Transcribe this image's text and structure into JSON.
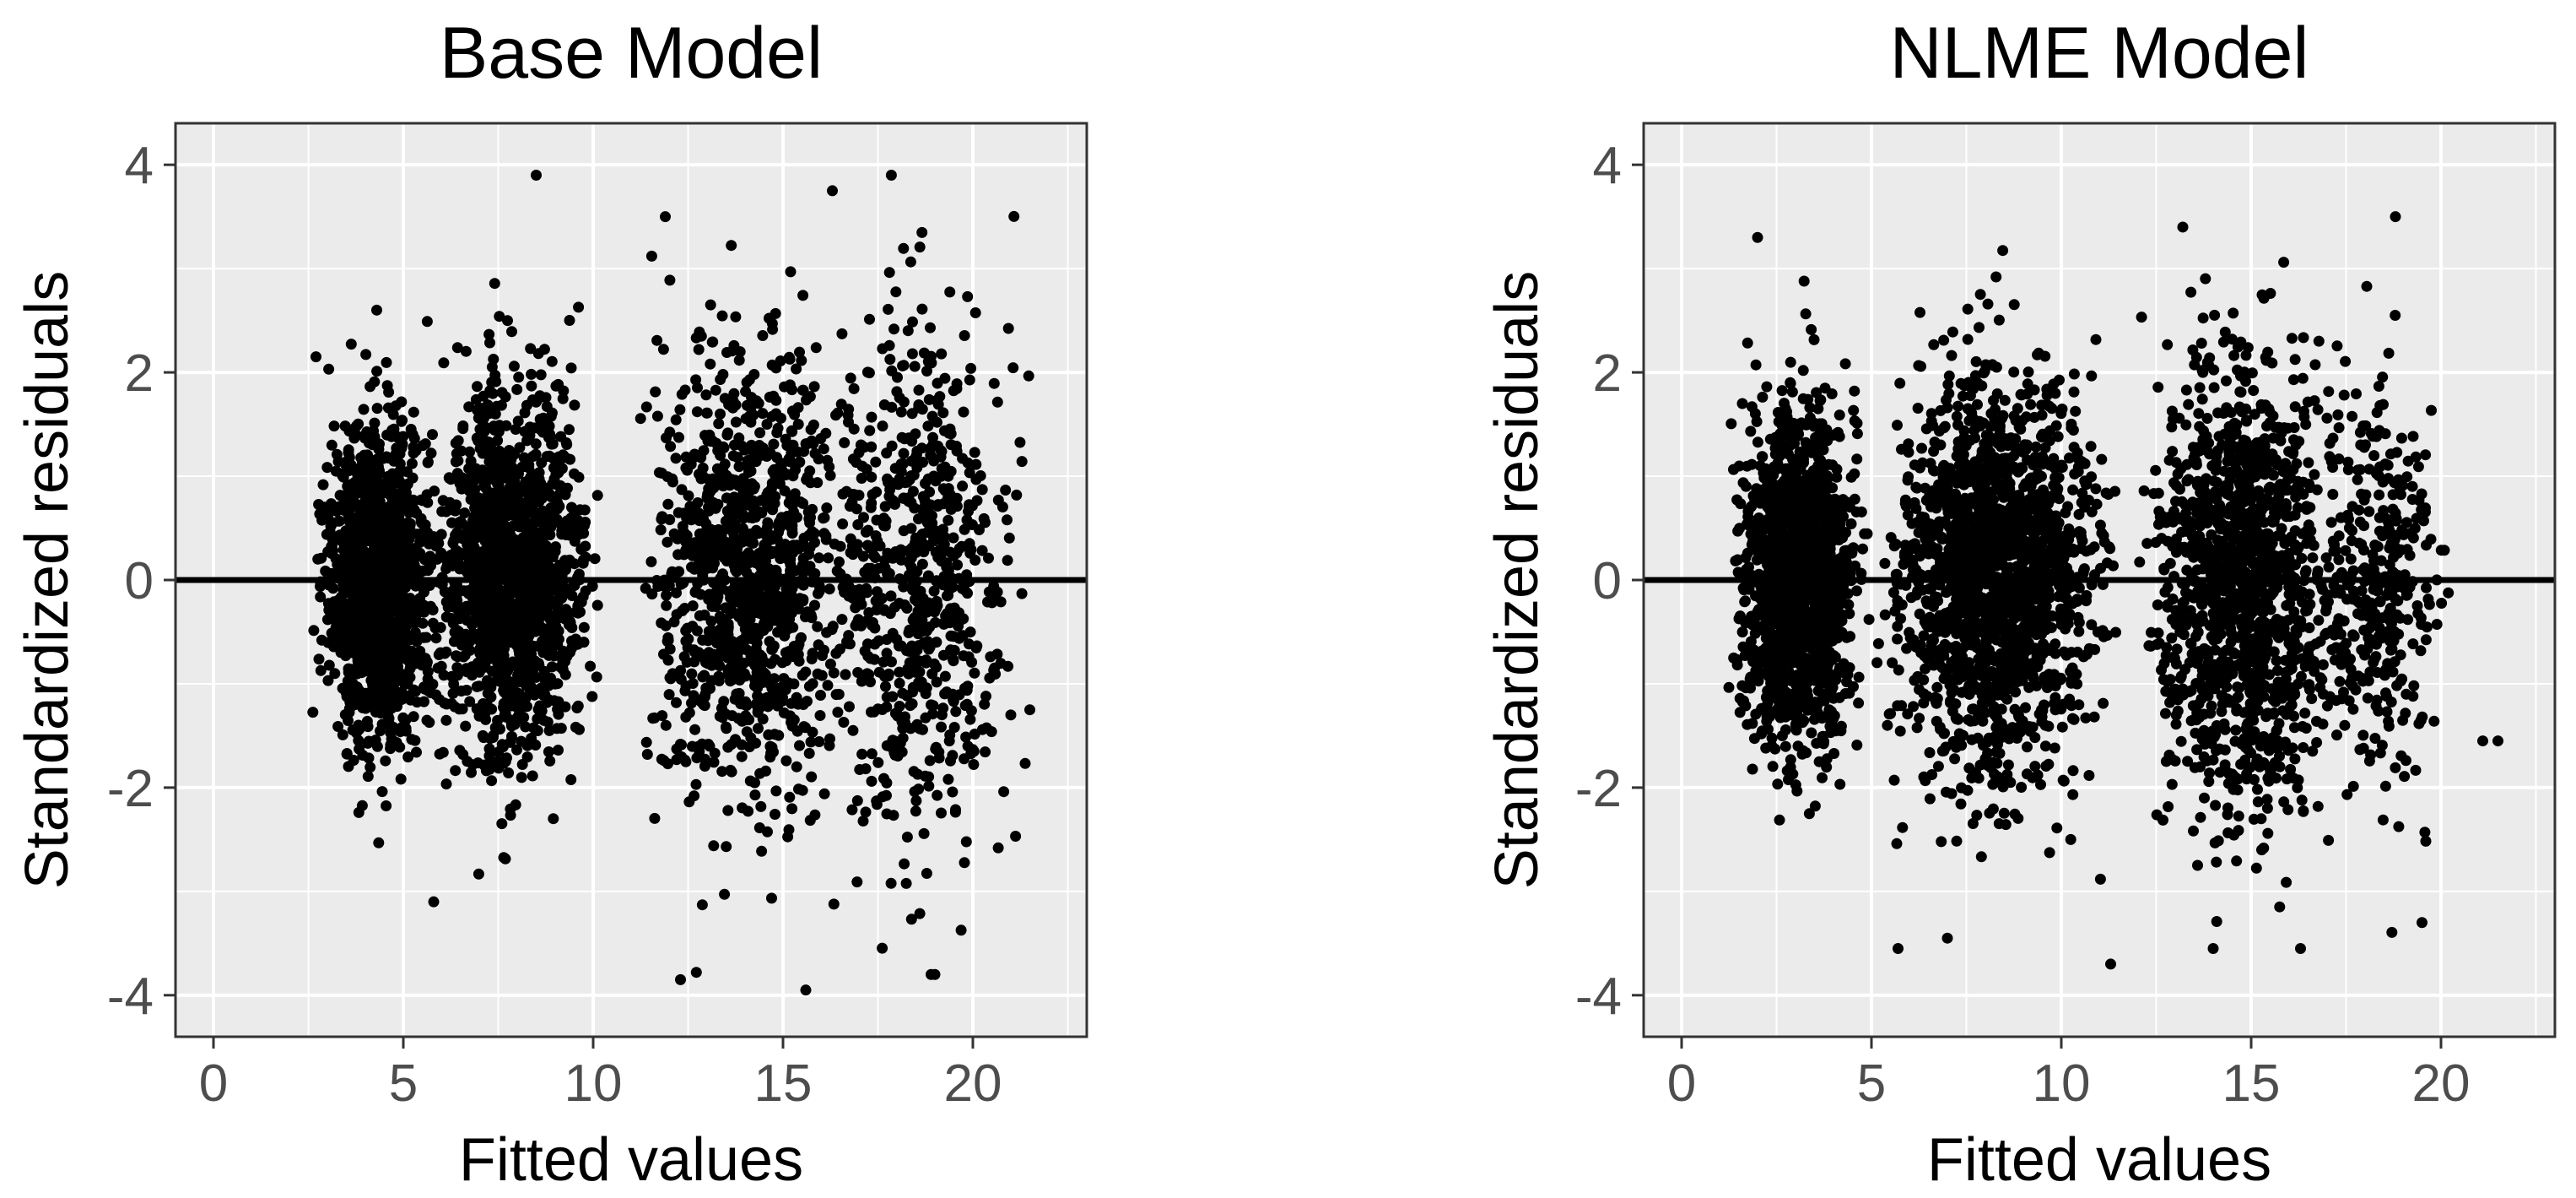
{
  "chart_data": [
    {
      "type": "scatter",
      "title": "Base Model",
      "xlabel": "Fitted values",
      "ylabel": "Standardized residuals",
      "xlim": [
        -1,
        23
      ],
      "ylim": [
        -4.4,
        4.4
      ],
      "xticks": [
        0,
        5,
        10,
        15,
        20
      ],
      "yticks": [
        -4,
        -2,
        0,
        2,
        4
      ],
      "grid": true,
      "reference_line": 0,
      "background": "#ebebeb",
      "point_color": "#000000",
      "clusters": [
        {
          "x_range": [
            2.6,
            6.0
          ],
          "x_center": 4.0,
          "sd": 0.75,
          "n": 1400
        },
        {
          "x_range": [
            5.5,
            10.2
          ],
          "x_center": 7.8,
          "sd": 0.85,
          "n": 1500
        },
        {
          "x_range": [
            11.0,
            17.0
          ],
          "x_center": 13.8,
          "sd": 1.05,
          "n": 1100
        },
        {
          "x_range": [
            15.5,
            21.5
          ],
          "x_center": 18.0,
          "sd": 1.25,
          "n": 700
        }
      ],
      "notable_points": [
        {
          "x": 8.5,
          "y": 3.9
        },
        {
          "x": 16.3,
          "y": 3.75
        },
        {
          "x": 15.6,
          "y": -3.95
        },
        {
          "x": 18.9,
          "y": -3.8
        },
        {
          "x": 19.0,
          "y": -3.8
        },
        {
          "x": 12.3,
          "y": -3.85
        },
        {
          "x": 21.0,
          "y": -1.3
        },
        {
          "x": 21.5,
          "y": -1.25
        },
        {
          "x": 5.8,
          "y": -3.1
        },
        {
          "x": 2.7,
          "y": 2.15
        },
        {
          "x": 4.3,
          "y": 2.6
        },
        {
          "x": 11.9,
          "y": 3.5
        }
      ]
    },
    {
      "type": "scatter",
      "title": "NLME Model",
      "xlabel": "Fitted values",
      "ylabel": "Standardized residuals",
      "xlim": [
        -1,
        23
      ],
      "ylim": [
        -4.4,
        4.4
      ],
      "xticks": [
        0,
        5,
        10,
        15,
        20
      ],
      "yticks": [
        -4,
        -2,
        0,
        2,
        4
      ],
      "grid": true,
      "reference_line": 0,
      "background": "#ebebeb",
      "point_color": "#000000",
      "clusters": [
        {
          "x_range": [
            1.2,
            5.0
          ],
          "x_center": 2.8,
          "sd": 0.8,
          "n": 1400
        },
        {
          "x_range": [
            5.0,
            11.5
          ],
          "x_center": 8.2,
          "sd": 0.95,
          "n": 1700
        },
        {
          "x_range": [
            12.0,
            17.5
          ],
          "x_center": 14.5,
          "sd": 1.05,
          "n": 1300
        },
        {
          "x_range": [
            16.5,
            20.3
          ],
          "x_center": 18.3,
          "sd": 1.0,
          "n": 350
        }
      ],
      "notable_points": [
        {
          "x": 18.8,
          "y": 3.5
        },
        {
          "x": 11.3,
          "y": -3.7
        },
        {
          "x": 14.0,
          "y": -3.55
        },
        {
          "x": 16.3,
          "y": -3.55
        },
        {
          "x": 5.7,
          "y": -3.55
        },
        {
          "x": 21.1,
          "y": -1.55
        },
        {
          "x": 21.5,
          "y": -1.55
        },
        {
          "x": 2.0,
          "y": 3.3
        },
        {
          "x": 1.6,
          "y": 1.7
        },
        {
          "x": 13.2,
          "y": 3.4
        },
        {
          "x": 7.0,
          "y": -3.45
        },
        {
          "x": 19.5,
          "y": -3.3
        }
      ]
    }
  ]
}
